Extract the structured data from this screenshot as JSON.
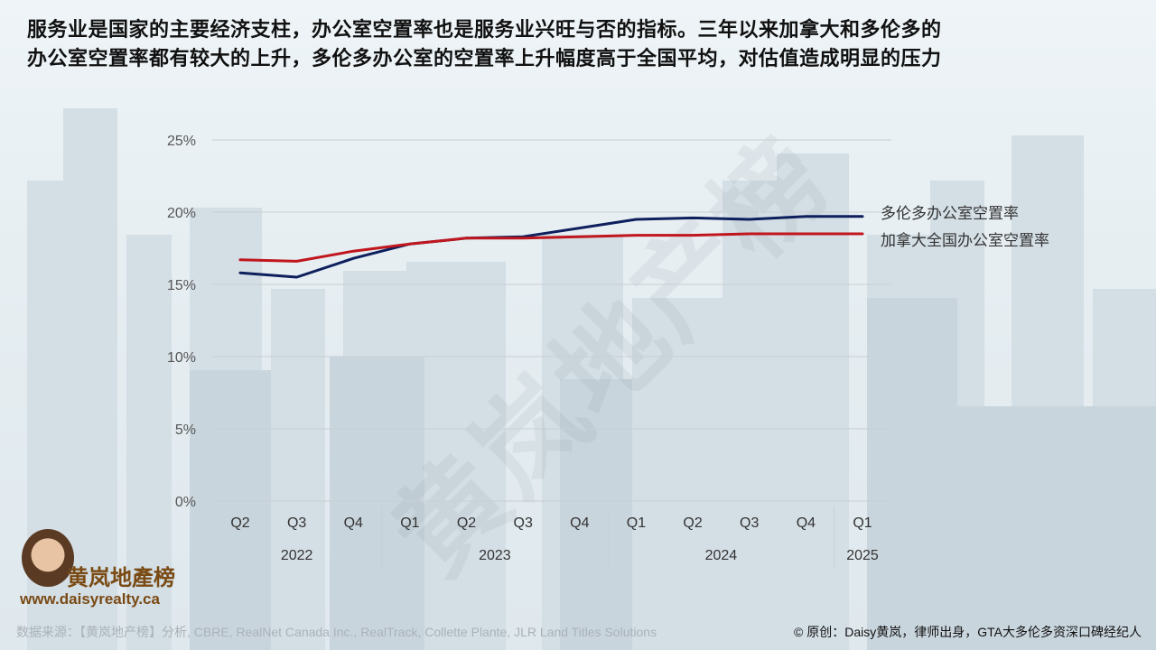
{
  "headline": {
    "line1": "服务业是国家的主要经济支柱，办公室空置率也是服务业兴旺与否的指标。三年以来加拿大和多伦多的",
    "line2": "办公室空置率都有较大的上升，多伦多办公室的空置率上升幅度高于全国平均，对估值造成明显的压力"
  },
  "watermark": "黄岚地产榜",
  "chart_data": {
    "type": "line",
    "categories": [
      "Q2",
      "Q3",
      "Q4",
      "Q1",
      "Q2",
      "Q3",
      "Q4",
      "Q1",
      "Q2",
      "Q3",
      "Q4",
      "Q1"
    ],
    "year_groups": [
      {
        "label": "2022",
        "start": 0,
        "end": 2
      },
      {
        "label": "2023",
        "start": 3,
        "end": 6
      },
      {
        "label": "2024",
        "start": 7,
        "end": 10
      },
      {
        "label": "2025",
        "start": 11,
        "end": 11
      }
    ],
    "series": [
      {
        "name": "多伦多办公室空置率",
        "color": "#0d1f5c",
        "values": [
          15.8,
          15.5,
          16.8,
          17.8,
          18.2,
          18.3,
          18.9,
          19.5,
          19.6,
          19.5,
          19.7,
          19.7
        ]
      },
      {
        "name": "加拿大全国办公室空置率",
        "color": "#c0161d",
        "values": [
          16.7,
          16.6,
          17.3,
          17.8,
          18.2,
          18.2,
          18.3,
          18.4,
          18.4,
          18.5,
          18.5,
          18.5
        ]
      }
    ],
    "y_ticks": [
      "0%",
      "5%",
      "10%",
      "15%",
      "20%",
      "25%"
    ],
    "ylim": [
      0,
      25
    ],
    "grid": true,
    "legend": "right, inline at line ends"
  },
  "logo": {
    "name": "黄岚地產榜",
    "url": "www.daisyrealty.ca"
  },
  "footer": {
    "source": "数据来源：【黄岚地产榜】分析, CBRE, RealNet Canada Inc., RealTrack, Collette Plante, JLR Land Titles Solutions",
    "credit": "© 原创：Daisy黄岚，律师出身，GTA大多伦多资深口碑经纪人"
  }
}
